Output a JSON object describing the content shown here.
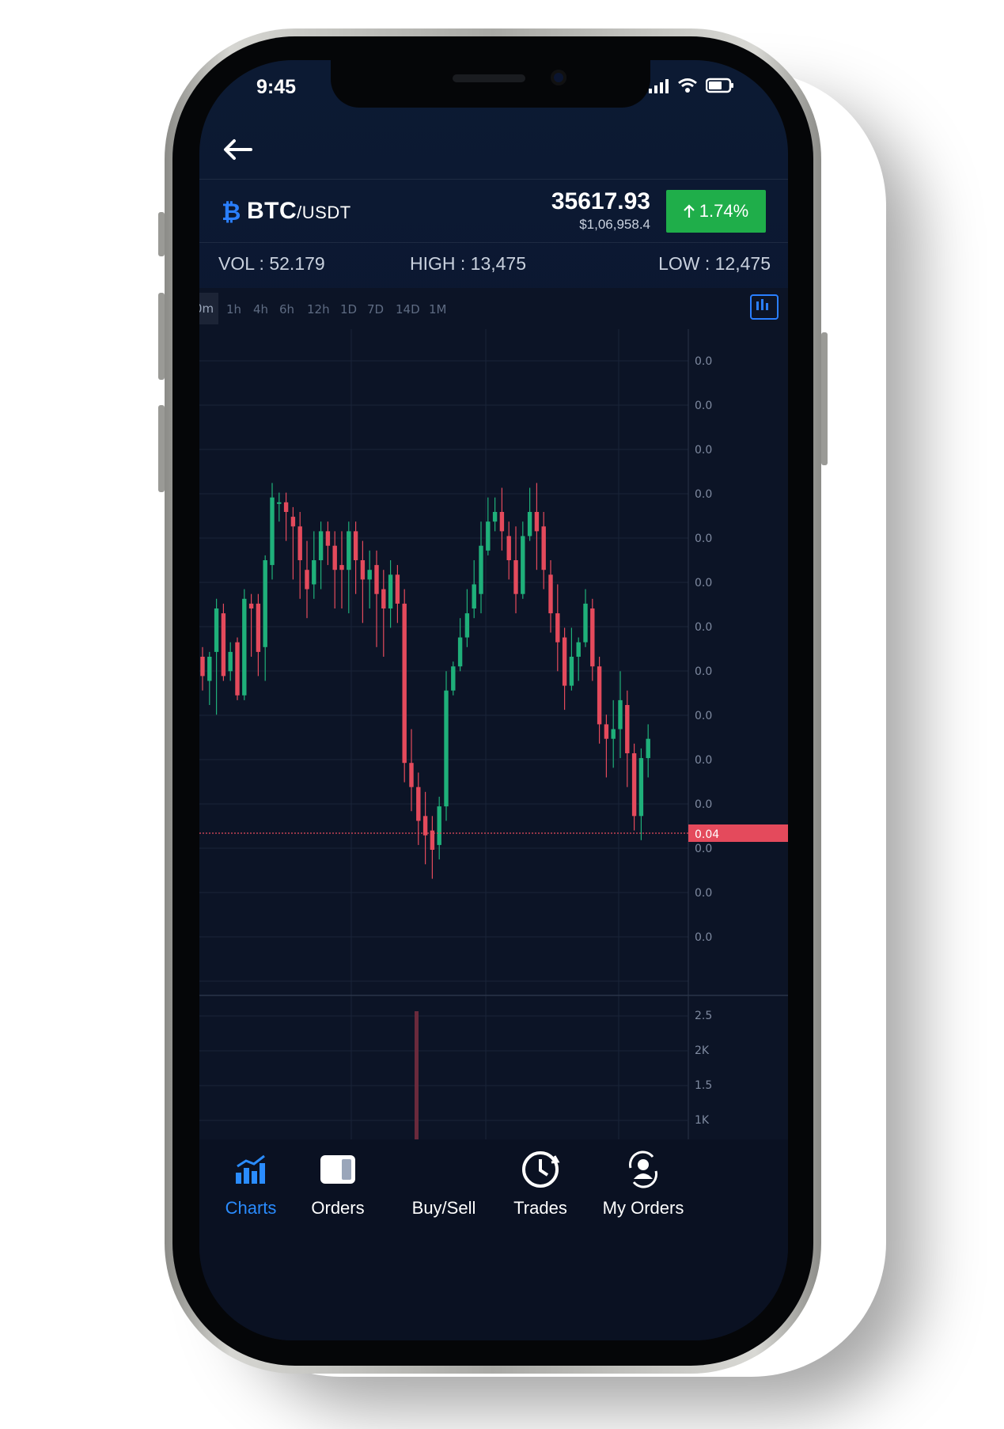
{
  "status_bar": {
    "time": "9:45"
  },
  "pair": {
    "base": "BTC",
    "separator": "/",
    "quote": "USDT",
    "price": "35617.93",
    "price_usd": "$1,06,958.4",
    "change": "1.74%",
    "change_color": "#1fae4a"
  },
  "stats": {
    "vol": "VOL : 52.179",
    "high": "HIGH : 13,475",
    "low": "LOW : 12,475"
  },
  "timeframes": [
    "0m",
    "1h",
    "4h",
    "6h",
    "12h",
    "1D",
    "7D",
    "14D",
    "1M"
  ],
  "active_timeframe": "0m",
  "axis_labels": {
    "price": [
      "0.0",
      "0.0",
      "0.0",
      "0.0",
      "0.0",
      "0.0",
      "0.0",
      "0.0",
      "0.0",
      "0.0",
      "0.0",
      "0.0",
      "0.0",
      "0.0"
    ],
    "current": "0.04",
    "volume": [
      "2.5",
      "2K",
      "1.5",
      "1K"
    ]
  },
  "colors": {
    "up": "#1fb07a",
    "down": "#e44a5c",
    "accent": "#2a8cff"
  },
  "chart_data": {
    "type": "candlestick",
    "candles": [
      [
        60,
        56,
        53,
        62
      ],
      [
        55,
        60,
        50,
        61
      ],
      [
        61,
        70,
        48,
        72
      ],
      [
        69,
        56,
        55,
        71
      ],
      [
        57,
        61,
        55,
        63
      ],
      [
        63,
        52,
        51,
        64
      ],
      [
        52,
        72,
        51,
        74
      ],
      [
        71,
        70,
        60,
        73
      ],
      [
        71,
        61,
        56,
        73
      ],
      [
        62,
        80,
        55,
        81
      ],
      [
        79,
        93,
        76,
        96
      ],
      [
        92,
        92,
        88,
        94
      ],
      [
        92,
        90,
        84,
        94
      ],
      [
        89,
        87,
        76,
        91
      ],
      [
        87,
        80,
        72,
        90
      ],
      [
        78,
        74,
        68,
        84
      ],
      [
        75,
        80,
        72,
        86
      ],
      [
        80,
        86,
        74,
        88
      ],
      [
        86,
        83,
        79,
        88
      ],
      [
        83,
        78,
        70,
        86
      ],
      [
        79,
        78,
        70,
        86
      ],
      [
        78,
        86,
        69,
        88
      ],
      [
        86,
        80,
        73,
        88
      ],
      [
        80,
        76,
        67,
        84
      ],
      [
        76,
        78,
        70,
        82
      ],
      [
        79,
        73,
        62,
        82
      ],
      [
        74,
        70,
        60,
        78
      ],
      [
        70,
        77,
        66,
        80
      ],
      [
        77,
        71,
        67,
        79
      ],
      [
        71,
        38,
        34,
        74
      ],
      [
        38,
        33,
        28,
        45
      ],
      [
        33,
        26,
        21,
        36
      ],
      [
        27,
        23,
        17,
        32
      ],
      [
        24,
        20,
        14,
        27
      ],
      [
        21,
        29,
        18,
        31
      ],
      [
        29,
        53,
        26,
        57
      ],
      [
        53,
        58,
        52,
        59
      ],
      [
        58,
        64,
        57,
        68
      ],
      [
        64,
        69,
        62,
        74
      ],
      [
        70,
        75,
        68,
        80
      ],
      [
        73,
        83,
        69,
        88
      ],
      [
        82,
        88,
        81,
        93
      ],
      [
        88,
        90,
        86,
        93
      ],
      [
        90,
        86,
        82,
        95
      ],
      [
        85,
        80,
        76,
        88
      ],
      [
        80,
        73,
        69,
        87
      ],
      [
        73,
        85,
        72,
        88
      ],
      [
        85,
        90,
        84,
        95
      ],
      [
        90,
        86,
        78,
        96
      ],
      [
        87,
        78,
        74,
        90
      ],
      [
        77,
        69,
        65,
        80
      ],
      [
        69,
        63,
        57,
        75
      ],
      [
        64,
        54,
        49,
        66
      ],
      [
        54,
        60,
        53,
        66
      ],
      [
        60,
        63,
        55,
        64
      ],
      [
        63,
        71,
        62,
        74
      ],
      [
        70,
        58,
        55,
        72
      ],
      [
        58,
        46,
        42,
        60
      ],
      [
        46,
        43,
        35,
        48
      ],
      [
        43,
        45,
        37,
        51
      ],
      [
        45,
        51,
        39,
        57
      ],
      [
        50,
        40,
        33,
        53
      ],
      [
        40,
        27,
        24,
        42
      ],
      [
        27,
        39,
        22,
        41
      ],
      [
        39,
        43,
        35,
        46
      ]
    ]
  }
}
